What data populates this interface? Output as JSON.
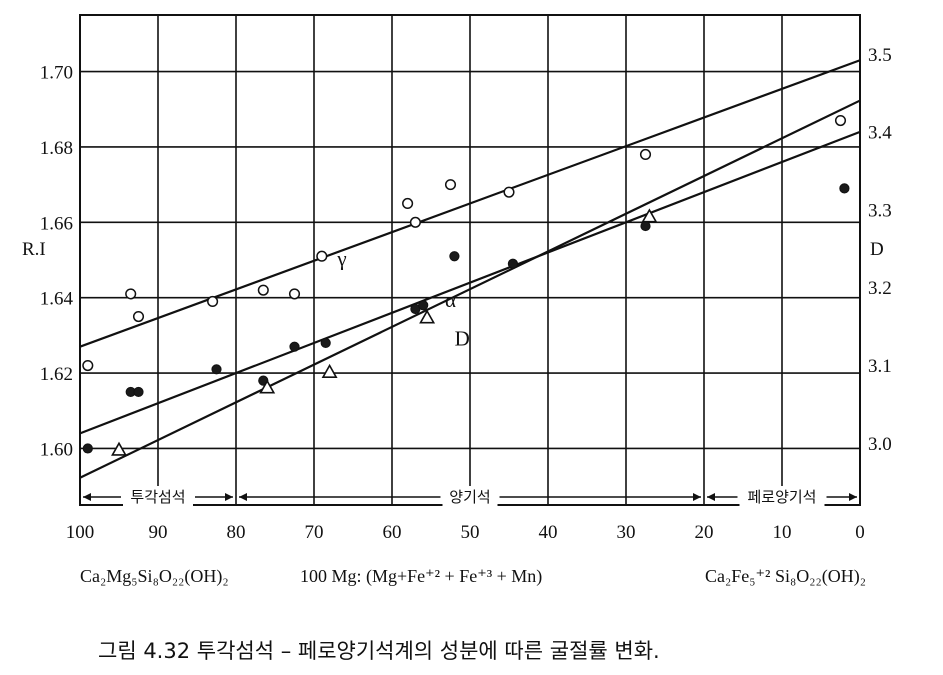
{
  "chart_data": {
    "type": "scatter",
    "title": "",
    "caption": "그림 4.32  투각섬석 – 페로양기석계의 성분에 따른 굴절률 변화.",
    "xlabel": "100 Mg: (Mg+Fe⁺² + Fe⁺³ + Mn)",
    "ylabel_left": "R.I",
    "ylabel_right": "D",
    "x_reversed": true,
    "xlim": [
      0,
      100
    ],
    "xticks": [
      "100",
      "90",
      "80",
      "70",
      "60",
      "50",
      "40",
      "30",
      "20",
      "10",
      "0"
    ],
    "ylim_left": [
      1.585,
      1.715
    ],
    "yticks_left": [
      "1.60",
      "1.62",
      "1.64",
      "1.66",
      "1.68",
      "1.70"
    ],
    "ylim_right": [
      2.92,
      3.55
    ],
    "yticks_right": [
      "3.0",
      "3.1",
      "3.2",
      "3.3",
      "3.4",
      "3.5"
    ],
    "grid": true,
    "end_members": {
      "left": "Ca₂Mg₅Si₈O₂₂(OH)₂",
      "right": "Ca₂Fe₅⁺² Si₈O₂₂(OH)₂"
    },
    "composition_ranges": [
      {
        "label": "투각섬석",
        "from": 100,
        "to": 80
      },
      {
        "label": "양기석",
        "from": 80,
        "to": 20
      },
      {
        "label": "페로양기석",
        "from": 20,
        "to": 0
      }
    ],
    "series": [
      {
        "name": "γ",
        "marker": "open-circle",
        "axis": "left",
        "points": [
          [
            99,
            1.622
          ],
          [
            93.5,
            1.641
          ],
          [
            92.5,
            1.635
          ],
          [
            83,
            1.639
          ],
          [
            76.5,
            1.642
          ],
          [
            72.5,
            1.641
          ],
          [
            69,
            1.651
          ],
          [
            58,
            1.665
          ],
          [
            57,
            1.66
          ],
          [
            52.5,
            1.67
          ],
          [
            45,
            1.668
          ],
          [
            27.5,
            1.678
          ],
          [
            2.5,
            1.687
          ]
        ],
        "fit": [
          [
            100,
            1.627
          ],
          [
            0,
            1.703
          ]
        ]
      },
      {
        "name": "α",
        "marker": "filled-circle",
        "axis": "left",
        "points": [
          [
            99,
            1.6
          ],
          [
            93.5,
            1.615
          ],
          [
            92.5,
            1.615
          ],
          [
            82.5,
            1.621
          ],
          [
            76.5,
            1.618
          ],
          [
            72.5,
            1.627
          ],
          [
            68.5,
            1.628
          ],
          [
            57,
            1.637
          ],
          [
            56,
            1.638
          ],
          [
            52,
            1.651
          ],
          [
            44.5,
            1.649
          ],
          [
            27.5,
            1.659
          ],
          [
            2,
            1.669
          ]
        ],
        "fit": [
          [
            100,
            1.604
          ],
          [
            0,
            1.684
          ]
        ]
      },
      {
        "name": "D",
        "marker": "open-triangle",
        "axis": "right",
        "points": [
          [
            95,
            2.99
          ],
          [
            76,
            3.07
          ],
          [
            68,
            3.09
          ],
          [
            55.5,
            3.16
          ],
          [
            27,
            3.29
          ]
        ],
        "fit": [
          [
            100,
            2.955
          ],
          [
            0,
            3.44
          ]
        ]
      }
    ]
  }
}
